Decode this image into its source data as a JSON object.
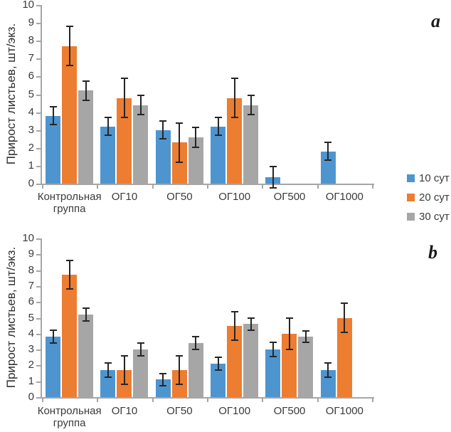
{
  "legend": {
    "items": [
      {
        "label": "10 сут",
        "color": "#4e95d0"
      },
      {
        "label": "20 сут",
        "color": "#ed7d31"
      },
      {
        "label": "30 сут",
        "color": "#a6a6a6"
      }
    ]
  },
  "chart_data": [
    {
      "id": "a",
      "type": "bar",
      "panel_label": "a",
      "title": "",
      "xlabel": "",
      "ylabel": "Прирост листьев, шт/экз.",
      "ylim": [
        0,
        10
      ],
      "ytick_step": 1,
      "grid": false,
      "legend_position": "right-middle",
      "categories": [
        "Контрольная группа",
        "ОГ10",
        "ОГ50",
        "ОГ100",
        "ОГ500",
        "ОГ1000"
      ],
      "series": [
        {
          "name": "10 сут",
          "color": "#4e95d0",
          "values": [
            3.8,
            3.2,
            3.0,
            3.2,
            0.35,
            1.8
          ],
          "errors": [
            0.5,
            0.5,
            0.5,
            0.5,
            0.6,
            0.5
          ]
        },
        {
          "name": "20 сут",
          "color": "#ed7d31",
          "values": [
            7.7,
            4.8,
            2.3,
            4.8,
            0,
            0
          ],
          "errors": [
            1.1,
            1.1,
            1.1,
            1.1,
            0,
            0
          ]
        },
        {
          "name": "30 сут",
          "color": "#a6a6a6",
          "values": [
            5.2,
            4.4,
            2.6,
            4.4,
            0,
            0
          ],
          "errors": [
            0.55,
            0.55,
            0.55,
            0.55,
            0,
            0
          ]
        }
      ]
    },
    {
      "id": "b",
      "type": "bar",
      "panel_label": "b",
      "title": "",
      "xlabel": "",
      "ylabel": "Прирост листьев, шт/экз.",
      "ylim": [
        0,
        10
      ],
      "ytick_step": 1,
      "grid": false,
      "legend_position": "right-middle",
      "categories": [
        "Контрольная группа",
        "ОГ10",
        "ОГ50",
        "ОГ100",
        "ОГ500",
        "ОГ1000"
      ],
      "series": [
        {
          "name": "10 сут",
          "color": "#4e95d0",
          "values": [
            3.8,
            1.7,
            1.1,
            2.1,
            3.0,
            1.7
          ],
          "errors": [
            0.4,
            0.45,
            0.4,
            0.4,
            0.45,
            0.45
          ]
        },
        {
          "name": "20 сут",
          "color": "#ed7d31",
          "values": [
            7.7,
            1.7,
            1.7,
            4.5,
            4.0,
            5.0
          ],
          "errors": [
            0.9,
            0.9,
            0.9,
            0.9,
            1.0,
            0.9
          ]
        },
        {
          "name": "30 сут",
          "color": "#a6a6a6",
          "values": [
            5.2,
            3.0,
            3.4,
            4.6,
            3.8,
            0
          ],
          "errors": [
            0.4,
            0.4,
            0.4,
            0.4,
            0.35,
            0
          ]
        }
      ]
    }
  ]
}
